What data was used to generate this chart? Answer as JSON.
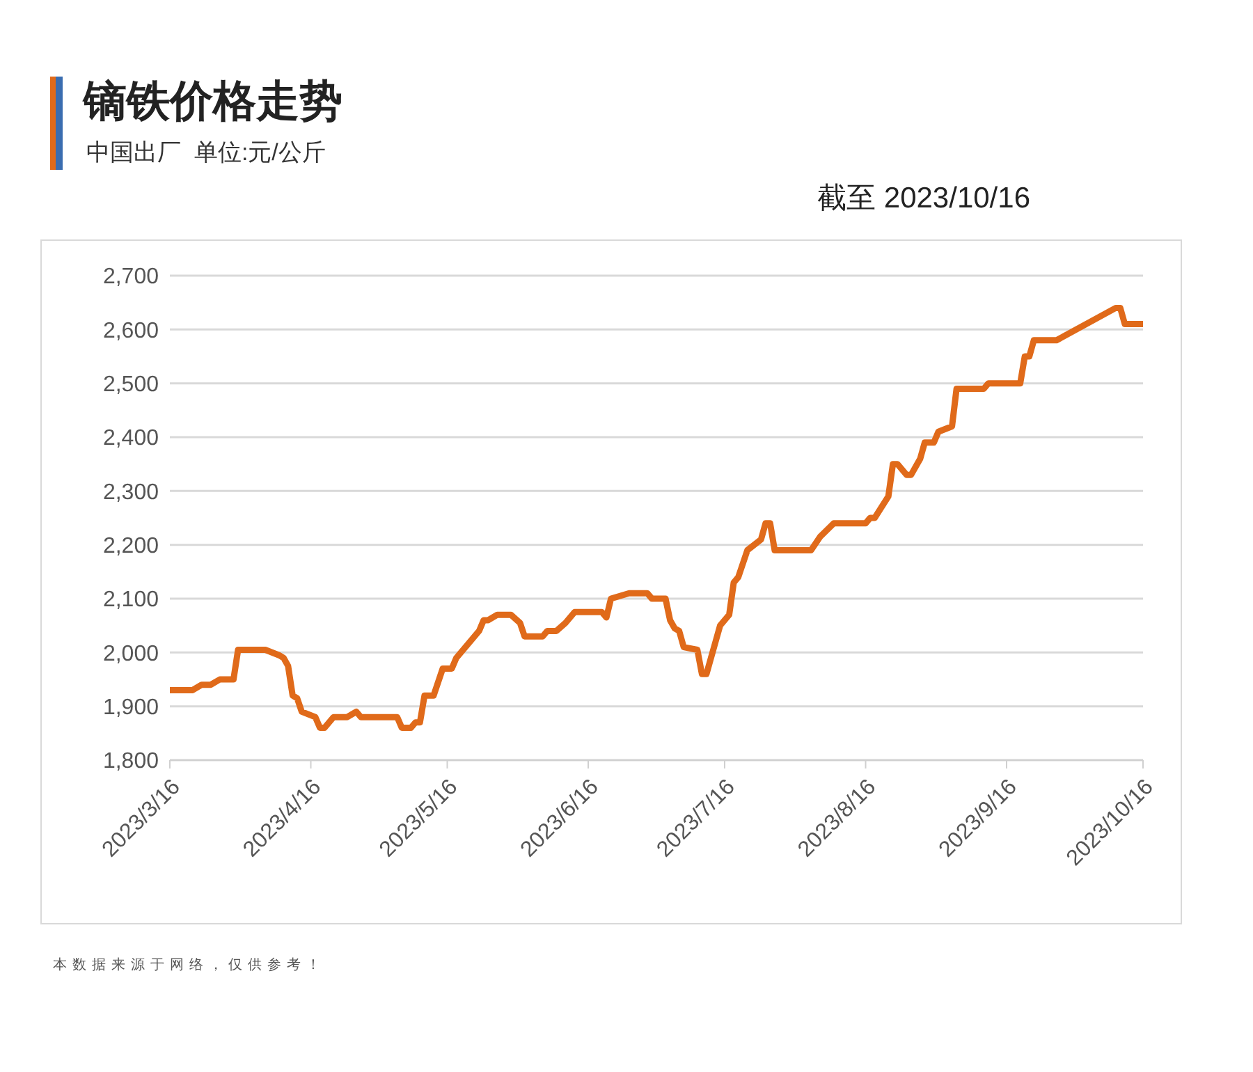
{
  "chart_data": {
    "type": "line",
    "title": "镝铁价格走势",
    "subtitle": "中国出厂  单位:元/公斤",
    "annotations": [
      "截至 2023/10/16",
      "本数据来源于网络，仅供参考！"
    ],
    "x": [
      "2023-03-16",
      "2023-03-21",
      "2023-03-23",
      "2023-03-25",
      "2023-03-27",
      "2023-03-30",
      "2023-03-31",
      "2023-04-06",
      "2023-04-09",
      "2023-04-10",
      "2023-04-11",
      "2023-04-12",
      "2023-04-13",
      "2023-04-14",
      "2023-04-17",
      "2023-04-18",
      "2023-04-19",
      "2023-04-21",
      "2023-04-24",
      "2023-04-26",
      "2023-04-27",
      "2023-05-05",
      "2023-05-06",
      "2023-05-08",
      "2023-05-09",
      "2023-05-10",
      "2023-05-11",
      "2023-05-13",
      "2023-05-15",
      "2023-05-17",
      "2023-05-18",
      "2023-05-23",
      "2023-05-24",
      "2023-05-25",
      "2023-05-27",
      "2023-05-30",
      "2023-06-01",
      "2023-06-02",
      "2023-06-06",
      "2023-06-07",
      "2023-06-09",
      "2023-06-11",
      "2023-06-13",
      "2023-06-19",
      "2023-06-20",
      "2023-06-21",
      "2023-06-25",
      "2023-06-29",
      "2023-06-30",
      "2023-07-03",
      "2023-07-04",
      "2023-07-05",
      "2023-07-06",
      "2023-07-07",
      "2023-07-10",
      "2023-07-11",
      "2023-07-12",
      "2023-07-14",
      "2023-07-15",
      "2023-07-17",
      "2023-07-18",
      "2023-07-19",
      "2023-07-21",
      "2023-07-24",
      "2023-07-25",
      "2023-07-26",
      "2023-07-27",
      "2023-08-04",
      "2023-08-06",
      "2023-08-09",
      "2023-08-16",
      "2023-08-17",
      "2023-08-18",
      "2023-08-21",
      "2023-08-22",
      "2023-08-23",
      "2023-08-25",
      "2023-08-26",
      "2023-08-28",
      "2023-08-29",
      "2023-08-31",
      "2023-09-01",
      "2023-09-04",
      "2023-09-05",
      "2023-09-11",
      "2023-09-12",
      "2023-09-19",
      "2023-09-20",
      "2023-09-21",
      "2023-09-22",
      "2023-09-27",
      "2023-10-10",
      "2023-10-11",
      "2023-10-12",
      "2023-10-16"
    ],
    "series": [
      {
        "color": "#e06a1a",
        "values": [
          1930,
          1930,
          1940,
          1940,
          1950,
          1950,
          2005,
          2005,
          1995,
          1990,
          1975,
          1920,
          1915,
          1890,
          1880,
          1860,
          1860,
          1880,
          1880,
          1890,
          1880,
          1880,
          1860,
          1860,
          1870,
          1870,
          1920,
          1920,
          1970,
          1970,
          1990,
          2040,
          2060,
          2060,
          2070,
          2070,
          2055,
          2030,
          2030,
          2040,
          2040,
          2055,
          2075,
          2075,
          2065,
          2100,
          2110,
          2110,
          2100,
          2100,
          2060,
          2045,
          2040,
          2010,
          2005,
          1960,
          1960,
          2020,
          2050,
          2070,
          2130,
          2140,
          2190,
          2210,
          2240,
          2240,
          2190,
          2190,
          2215,
          2240,
          2240,
          2250,
          2250,
          2290,
          2350,
          2350,
          2330,
          2330,
          2360,
          2390,
          2390,
          2410,
          2420,
          2490,
          2490,
          2500,
          2500,
          2550,
          2550,
          2580,
          2580,
          2640,
          2640,
          2610,
          2610
        ]
      }
    ],
    "xlim": [
      "2023-03-16",
      "2023-10-16"
    ],
    "xticks": [
      {
        "value": "2023-03-16",
        "label": "2023/3/16"
      },
      {
        "value": "2023-04-16",
        "label": "2023/4/16"
      },
      {
        "value": "2023-05-16",
        "label": "2023/5/16"
      },
      {
        "value": "2023-06-16",
        "label": "2023/6/16"
      },
      {
        "value": "2023-07-16",
        "label": "2023/7/16"
      },
      {
        "value": "2023-08-16",
        "label": "2023/8/16"
      },
      {
        "value": "2023-09-16",
        "label": "2023/9/16"
      },
      {
        "value": "2023-10-16",
        "label": "2023/10/16"
      }
    ],
    "ylim": [
      1800,
      2700
    ],
    "yticks": [
      {
        "value": 1800,
        "label": "1,800"
      },
      {
        "value": 1900,
        "label": "1,900"
      },
      {
        "value": 2000,
        "label": "2,000"
      },
      {
        "value": 2100,
        "label": "2,100"
      },
      {
        "value": 2200,
        "label": "2,200"
      },
      {
        "value": 2300,
        "label": "2,300"
      },
      {
        "value": 2400,
        "label": "2,400"
      },
      {
        "value": 2500,
        "label": "2,500"
      },
      {
        "value": 2600,
        "label": "2,600"
      },
      {
        "value": 2700,
        "label": "2,700"
      }
    ],
    "grid": "y",
    "marker": "none",
    "line_style": "solid"
  }
}
